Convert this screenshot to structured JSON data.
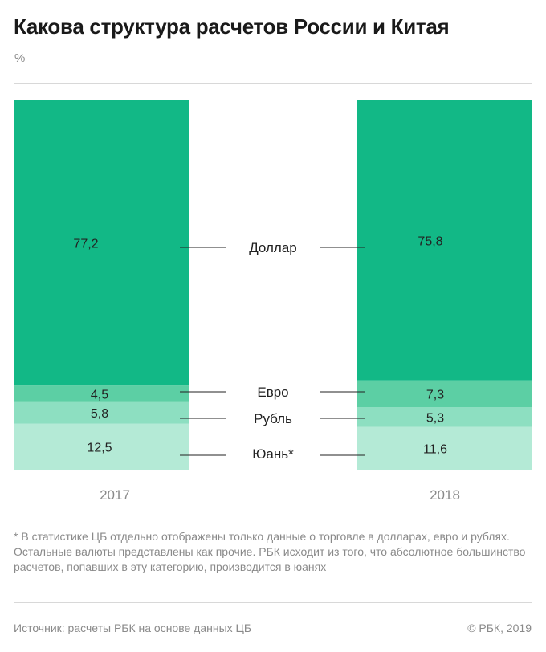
{
  "header": {
    "title": "Какова структура расчетов России и Китая",
    "unit": "%"
  },
  "chart_data": {
    "type": "bar",
    "stacked": true,
    "title": "Какова структура расчетов России и Китая",
    "ylabel": "%",
    "categories": [
      "2017",
      "2018"
    ],
    "ylim": [
      0,
      100
    ],
    "series": [
      {
        "name": "Юань*",
        "values": [
          12.5,
          11.6
        ],
        "labels": [
          "12,5",
          "11,6"
        ],
        "color": "#b4ead6"
      },
      {
        "name": "Рубль",
        "values": [
          5.8,
          5.3
        ],
        "labels": [
          "5,8",
          "5,3"
        ],
        "color": "#8ddfc1"
      },
      {
        "name": "Евро",
        "values": [
          4.5,
          7.3
        ],
        "labels": [
          "4,5",
          "7,3"
        ],
        "color": "#5ccfa4"
      },
      {
        "name": "Доллар",
        "values": [
          77.2,
          75.8
        ],
        "labels": [
          "77,2",
          "75,8"
        ],
        "color": "#12b886"
      }
    ],
    "grid": false,
    "legend": "center"
  },
  "footer": {
    "footnote": "* В статистике ЦБ отдельно отображены только данные о торговле в долларах, евро и рублях. Остальные валюты представлены как прочие. РБК исходит из того, что абсолютное большинство расчетов, попавших в эту категорию, производится в юанях",
    "source": "Источник: расчеты РБК на основе данных ЦБ",
    "copyright": "© РБК, 2019"
  }
}
